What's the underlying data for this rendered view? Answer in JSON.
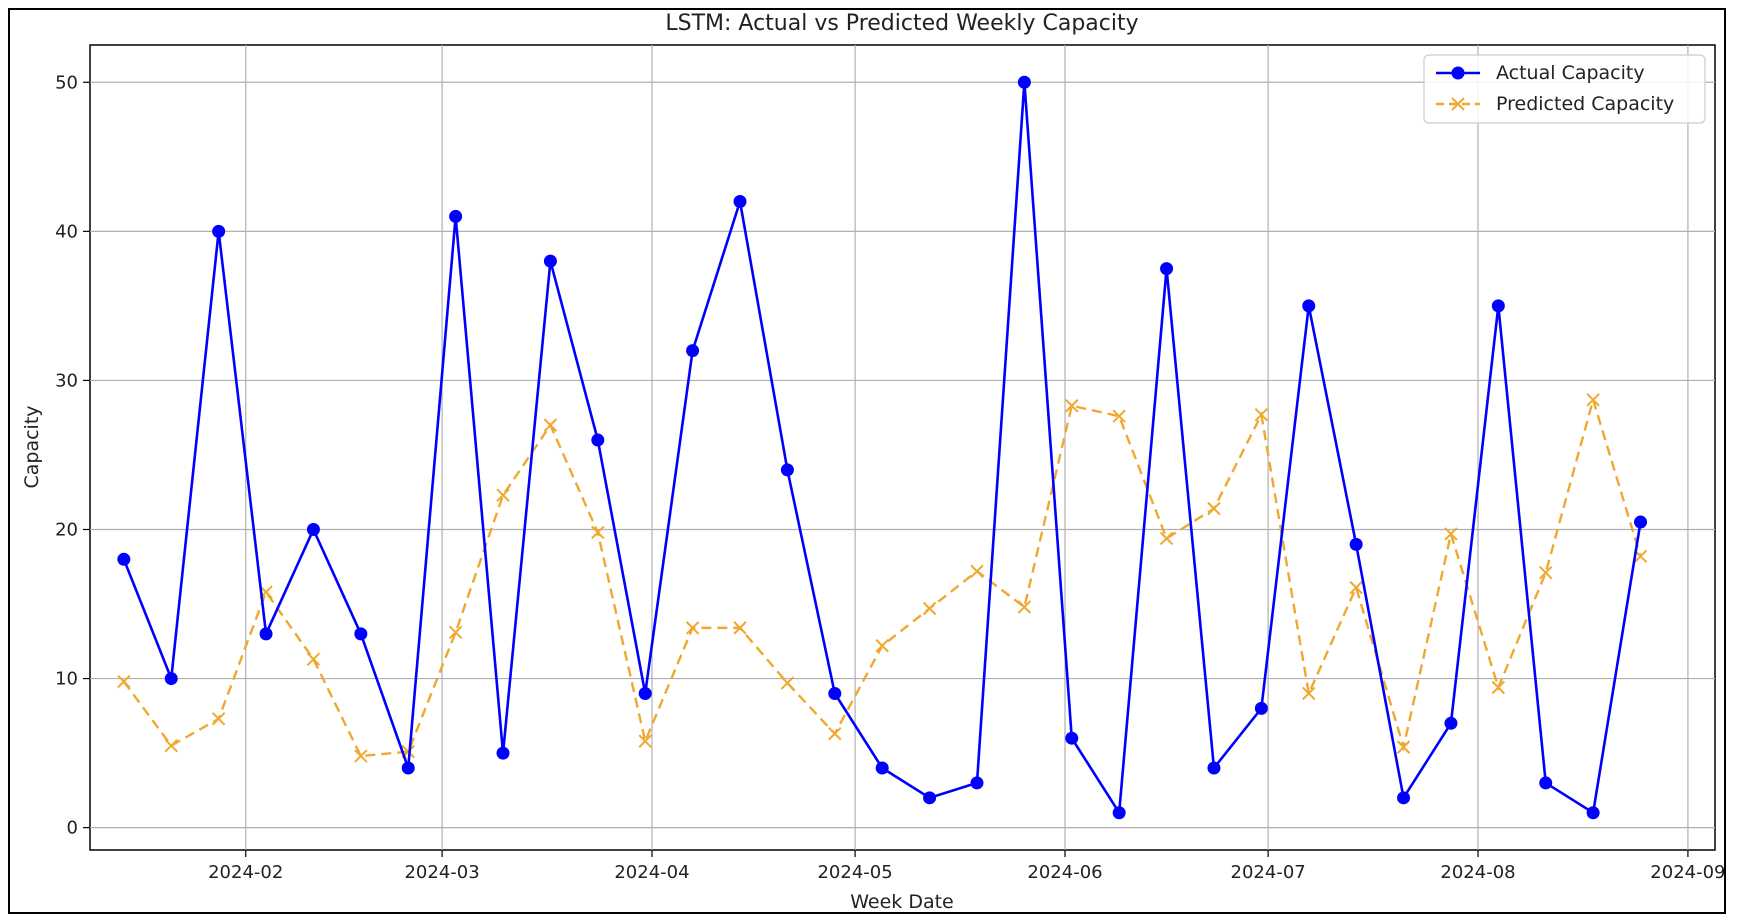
{
  "chart_data": {
    "type": "line",
    "title": "LSTM: Actual vs Predicted Weekly Capacity",
    "xlabel": "Week Date",
    "ylabel": "Capacity",
    "x": [
      "2024-01-14",
      "2024-01-21",
      "2024-01-28",
      "2024-02-04",
      "2024-02-11",
      "2024-02-18",
      "2024-02-25",
      "2024-03-03",
      "2024-03-10",
      "2024-03-17",
      "2024-03-24",
      "2024-03-31",
      "2024-04-07",
      "2024-04-14",
      "2024-04-21",
      "2024-04-28",
      "2024-05-05",
      "2024-05-12",
      "2024-05-19",
      "2024-05-26",
      "2024-06-02",
      "2024-06-09",
      "2024-06-16",
      "2024-06-23",
      "2024-06-30",
      "2024-07-07",
      "2024-07-14",
      "2024-07-21",
      "2024-07-28",
      "2024-08-04",
      "2024-08-11",
      "2024-08-18",
      "2024-08-25"
    ],
    "xlim": [
      "2024-01-09",
      "2024-09-05"
    ],
    "ylim": [
      -1.5,
      52.5
    ],
    "x_ticks": [
      "2024-02",
      "2024-03",
      "2024-04",
      "2024-05",
      "2024-06",
      "2024-07",
      "2024-08",
      "2024-09"
    ],
    "x_tick_dates": [
      "2024-02-01",
      "2024-03-01",
      "2024-04-01",
      "2024-05-01",
      "2024-06-01",
      "2024-07-01",
      "2024-08-01",
      "2024-09-01"
    ],
    "y_ticks": [
      0,
      10,
      20,
      30,
      40,
      50
    ],
    "grid": true,
    "legend_position": "top-right",
    "series": [
      {
        "name": "Actual Capacity",
        "color": "#0000ff",
        "style": "solid",
        "marker": "circle",
        "values": [
          18,
          10,
          40,
          13,
          20,
          13,
          4,
          41,
          5,
          38,
          26,
          9,
          32,
          42,
          24,
          9,
          4,
          2,
          3,
          50,
          6,
          1,
          37.5,
          4,
          8,
          35,
          19,
          2,
          7,
          35,
          3,
          1,
          20.5
        ]
      },
      {
        "name": "Predicted Capacity",
        "color": "#f0a830",
        "style": "dashed",
        "marker": "x",
        "values": [
          9.8,
          5.5,
          7.3,
          15.8,
          11.3,
          4.8,
          5.1,
          13.1,
          22.3,
          27,
          19.8,
          5.8,
          13.4,
          13.4,
          9.7,
          6.3,
          12.2,
          14.7,
          17.2,
          14.8,
          28.3,
          27.6,
          19.4,
          21.4,
          27.7,
          9,
          16.1,
          5.4,
          19.7,
          9.4,
          17.1,
          28.7,
          18.2
        ]
      }
    ]
  }
}
